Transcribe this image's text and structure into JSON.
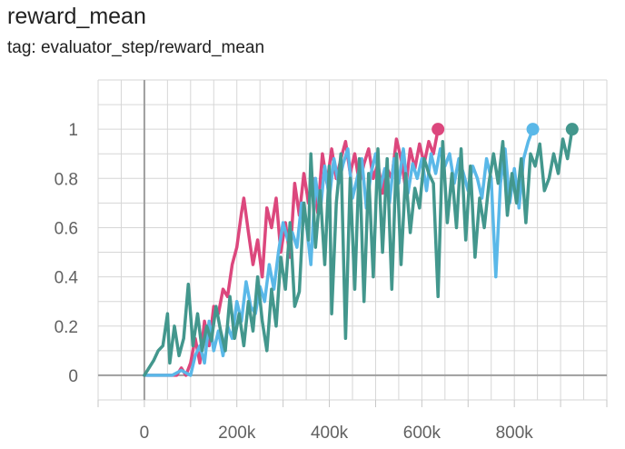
{
  "header": {
    "title": "reward_mean",
    "subtitle": "tag: evaluator_step/reward_mean"
  },
  "chart_data": {
    "type": "line",
    "title": "reward_mean",
    "subtitle": "tag: evaluator_step/reward_mean",
    "xlabel": "",
    "ylabel": "",
    "xlim": [
      -100000,
      1000000
    ],
    "ylim": [
      -0.1,
      1.2
    ],
    "grid": true,
    "x_ticks": [
      0,
      200000,
      400000,
      600000,
      800000
    ],
    "x_tick_labels": [
      "0",
      "200k",
      "400k",
      "600k",
      "800k"
    ],
    "y_ticks": [
      0,
      0.2,
      0.4,
      0.6,
      0.8,
      1
    ],
    "y_tick_labels": [
      "0",
      "0.2",
      "0.4",
      "0.6",
      "0.8",
      "1"
    ],
    "series": [
      {
        "color": "#dc477d",
        "points": [
          [
            0,
            0
          ],
          [
            20000,
            0
          ],
          [
            40000,
            0
          ],
          [
            55000,
            0
          ],
          [
            70000,
            0
          ],
          [
            80000,
            0.03
          ],
          [
            90000,
            0
          ],
          [
            100000,
            0.05
          ],
          [
            110000,
            0.15
          ],
          [
            120000,
            0.05
          ],
          [
            130000,
            0.22
          ],
          [
            140000,
            0.12
          ],
          [
            150000,
            0.28
          ],
          [
            160000,
            0.25
          ],
          [
            170000,
            0.35
          ],
          [
            180000,
            0.32
          ],
          [
            190000,
            0.45
          ],
          [
            200000,
            0.52
          ],
          [
            210000,
            0.66
          ],
          [
            215000,
            0.72
          ],
          [
            225000,
            0.58
          ],
          [
            235000,
            0.45
          ],
          [
            245000,
            0.55
          ],
          [
            255000,
            0.4
          ],
          [
            265000,
            0.68
          ],
          [
            275000,
            0.6
          ],
          [
            285000,
            0.72
          ],
          [
            295000,
            0.5
          ],
          [
            305000,
            0.62
          ],
          [
            315000,
            0.48
          ],
          [
            325000,
            0.78
          ],
          [
            335000,
            0.65
          ],
          [
            345000,
            0.82
          ],
          [
            355000,
            0.7
          ],
          [
            365000,
            0.8
          ],
          [
            375000,
            0.66
          ],
          [
            385000,
            0.9
          ],
          [
            395000,
            0.78
          ],
          [
            405000,
            0.92
          ],
          [
            415000,
            0.8
          ],
          [
            425000,
            0.88
          ],
          [
            435000,
            0.95
          ],
          [
            445000,
            0.82
          ],
          [
            455000,
            0.9
          ],
          [
            465000,
            0.78
          ],
          [
            475000,
            0.86
          ],
          [
            485000,
            0.92
          ],
          [
            495000,
            0.8
          ],
          [
            505000,
            0.86
          ],
          [
            515000,
            0.74
          ],
          [
            525000,
            0.84
          ],
          [
            535000,
            0.8
          ],
          [
            545000,
            0.96
          ],
          [
            555000,
            0.88
          ],
          [
            565000,
            0.76
          ],
          [
            575000,
            0.92
          ],
          [
            585000,
            0.84
          ],
          [
            595000,
            0.94
          ],
          [
            605000,
            0.86
          ],
          [
            615000,
            0.95
          ],
          [
            625000,
            0.9
          ],
          [
            635000,
            1.0
          ]
        ]
      },
      {
        "color": "#5ab8e8",
        "points": [
          [
            0,
            0
          ],
          [
            20000,
            0
          ],
          [
            40000,
            0
          ],
          [
            60000,
            0
          ],
          [
            80000,
            0.02
          ],
          [
            100000,
            0
          ],
          [
            110000,
            0.08
          ],
          [
            120000,
            0.12
          ],
          [
            130000,
            0.05
          ],
          [
            140000,
            0.22
          ],
          [
            150000,
            0.1
          ],
          [
            160000,
            0.18
          ],
          [
            170000,
            0.08
          ],
          [
            180000,
            0.2
          ],
          [
            190000,
            0.15
          ],
          [
            200000,
            0.3
          ],
          [
            210000,
            0.22
          ],
          [
            220000,
            0.38
          ],
          [
            230000,
            0.28
          ],
          [
            240000,
            0.25
          ],
          [
            250000,
            0.36
          ],
          [
            260000,
            0.3
          ],
          [
            270000,
            0.45
          ],
          [
            280000,
            0.35
          ],
          [
            290000,
            0.5
          ],
          [
            300000,
            0.62
          ],
          [
            310000,
            0.55
          ],
          [
            320000,
            0.58
          ],
          [
            330000,
            0.52
          ],
          [
            340000,
            0.7
          ],
          [
            350000,
            0.62
          ],
          [
            360000,
            0.45
          ],
          [
            370000,
            0.8
          ],
          [
            380000,
            0.66
          ],
          [
            390000,
            0.85
          ],
          [
            400000,
            0.72
          ],
          [
            410000,
            0.88
          ],
          [
            420000,
            0.78
          ],
          [
            430000,
            0.86
          ],
          [
            440000,
            0.92
          ],
          [
            450000,
            0.72
          ],
          [
            460000,
            0.8
          ],
          [
            470000,
            0.88
          ],
          [
            480000,
            0.68
          ],
          [
            490000,
            0.82
          ],
          [
            500000,
            0.9
          ],
          [
            510000,
            0.76
          ],
          [
            520000,
            0.84
          ],
          [
            530000,
            0.7
          ],
          [
            540000,
            0.88
          ],
          [
            550000,
            0.78
          ],
          [
            560000,
            0.92
          ],
          [
            570000,
            0.74
          ],
          [
            580000,
            0.86
          ],
          [
            590000,
            0.8
          ],
          [
            600000,
            0.88
          ],
          [
            610000,
            0.75
          ],
          [
            620000,
            0.9
          ],
          [
            630000,
            0.82
          ],
          [
            640000,
            0.92
          ],
          [
            650000,
            0.85
          ],
          [
            660000,
            0.9
          ],
          [
            670000,
            0.78
          ],
          [
            680000,
            0.88
          ],
          [
            690000,
            0.82
          ],
          [
            700000,
            0.75
          ],
          [
            710000,
            0.85
          ],
          [
            720000,
            0.8
          ],
          [
            730000,
            0.72
          ],
          [
            740000,
            0.88
          ],
          [
            750000,
            0.8
          ],
          [
            760000,
            0.4
          ],
          [
            770000,
            0.78
          ],
          [
            780000,
            0.92
          ],
          [
            790000,
            0.7
          ],
          [
            800000,
            0.84
          ],
          [
            810000,
            0.68
          ],
          [
            820000,
            0.88
          ],
          [
            830000,
            0.95
          ],
          [
            840000,
            1.0
          ]
        ]
      },
      {
        "color": "#43978d",
        "points": [
          [
            0,
            0
          ],
          [
            20000,
            0.06
          ],
          [
            30000,
            0.1
          ],
          [
            40000,
            0.12
          ],
          [
            50000,
            0.25
          ],
          [
            55000,
            0.05
          ],
          [
            65000,
            0.2
          ],
          [
            75000,
            0.08
          ],
          [
            85000,
            0.15
          ],
          [
            95000,
            0.37
          ],
          [
            105000,
            0.12
          ],
          [
            115000,
            0.25
          ],
          [
            125000,
            0.1
          ],
          [
            135000,
            0.2
          ],
          [
            145000,
            0.14
          ],
          [
            155000,
            0.28
          ],
          [
            165000,
            0.18
          ],
          [
            175000,
            0.1
          ],
          [
            185000,
            0.32
          ],
          [
            195000,
            0.15
          ],
          [
            205000,
            0.25
          ],
          [
            215000,
            0.12
          ],
          [
            225000,
            0.3
          ],
          [
            235000,
            0.18
          ],
          [
            245000,
            0.4
          ],
          [
            255000,
            0.22
          ],
          [
            265000,
            0.1
          ],
          [
            275000,
            0.35
          ],
          [
            285000,
            0.2
          ],
          [
            295000,
            0.48
          ],
          [
            305000,
            0.35
          ],
          [
            315000,
            0.62
          ],
          [
            325000,
            0.28
          ],
          [
            335000,
            0.34
          ],
          [
            345000,
            0.7
          ],
          [
            355000,
            0.55
          ],
          [
            360000,
            0.9
          ],
          [
            370000,
            0.52
          ],
          [
            380000,
            0.75
          ],
          [
            390000,
            0.45
          ],
          [
            400000,
            0.85
          ],
          [
            405000,
            0.25
          ],
          [
            415000,
            0.7
          ],
          [
            425000,
            0.9
          ],
          [
            435000,
            0.15
          ],
          [
            445000,
            0.8
          ],
          [
            455000,
            0.35
          ],
          [
            465000,
            0.88
          ],
          [
            475000,
            0.3
          ],
          [
            485000,
            0.82
          ],
          [
            495000,
            0.4
          ],
          [
            505000,
            0.92
          ],
          [
            515000,
            0.5
          ],
          [
            525000,
            0.88
          ],
          [
            535000,
            0.35
          ],
          [
            545000,
            0.9
          ],
          [
            555000,
            0.45
          ],
          [
            565000,
            0.82
          ],
          [
            575000,
            0.58
          ],
          [
            585000,
            0.76
          ],
          [
            595000,
            0.68
          ],
          [
            605000,
            0.88
          ],
          [
            615000,
            0.82
          ],
          [
            625000,
            0.78
          ],
          [
            635000,
            0.32
          ],
          [
            645000,
            0.95
          ],
          [
            655000,
            0.62
          ],
          [
            665000,
            0.82
          ],
          [
            675000,
            0.6
          ],
          [
            685000,
            0.92
          ],
          [
            695000,
            0.55
          ],
          [
            705000,
            0.85
          ],
          [
            715000,
            0.48
          ],
          [
            725000,
            0.72
          ],
          [
            735000,
            0.6
          ],
          [
            745000,
            0.78
          ],
          [
            755000,
            0.9
          ],
          [
            765000,
            0.78
          ],
          [
            775000,
            0.95
          ],
          [
            785000,
            0.65
          ],
          [
            795000,
            0.82
          ],
          [
            805000,
            0.7
          ],
          [
            815000,
            0.88
          ],
          [
            825000,
            0.62
          ],
          [
            835000,
            0.9
          ],
          [
            845000,
            0.85
          ],
          [
            855000,
            0.94
          ],
          [
            865000,
            0.75
          ],
          [
            875000,
            0.8
          ],
          [
            885000,
            0.9
          ],
          [
            895000,
            0.82
          ],
          [
            905000,
            0.96
          ],
          [
            915000,
            0.88
          ],
          [
            925000,
            1.0
          ]
        ]
      }
    ]
  }
}
